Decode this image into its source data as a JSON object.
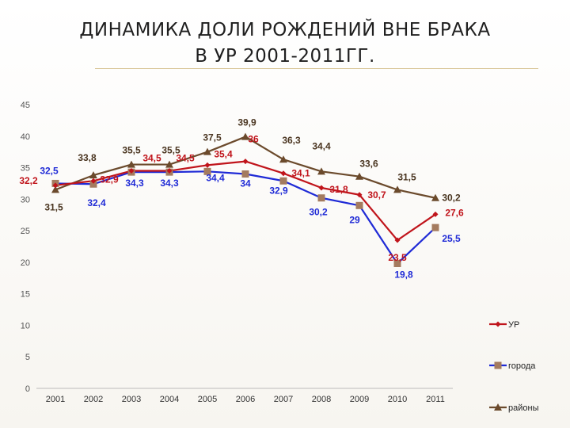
{
  "title_line1": "ДИНАМИКА ДОЛИ РОЖДЕНИЙ ВНЕ БРАКА",
  "title_line2": "В УР 2001-2011ГГ.",
  "chart_data": {
    "type": "line",
    "categories": [
      "2001",
      "2002",
      "2003",
      "2004",
      "2005",
      "2006",
      "2007",
      "2008",
      "2009",
      "2010",
      "2011"
    ],
    "ylim": [
      0,
      45
    ],
    "yticks": [
      0,
      5,
      10,
      15,
      20,
      25,
      30,
      35,
      40,
      45
    ],
    "grid": false,
    "legend_position": "bottom-right",
    "series": [
      {
        "name": "УР",
        "values": [
          32.2,
          32.9,
          34.5,
          34.5,
          35.4,
          36,
          34.1,
          31.8,
          30.7,
          23.5,
          27.6
        ],
        "labels": [
          "32,2",
          "32,9",
          "34,5",
          "34,5",
          "35,4",
          "36",
          "34,1",
          "31,8",
          "30,7",
          "23,5",
          "27,6"
        ],
        "color": "#c0141b",
        "marker": "diamond"
      },
      {
        "name": "города",
        "values": [
          32.5,
          32.4,
          34.3,
          34.3,
          34.4,
          34,
          32.9,
          30.2,
          29,
          19.8,
          25.5
        ],
        "labels": [
          "32,5",
          "32,4",
          "34,3",
          "34,3",
          "34,4",
          "34",
          "32,9",
          "30,2",
          "29",
          "19,8",
          "25,5"
        ],
        "color": "#1f2ad6",
        "marker": "square",
        "marker_color": "#a47b5f"
      },
      {
        "name": "районы",
        "values": [
          31.5,
          33.8,
          35.5,
          35.5,
          37.5,
          39.9,
          36.3,
          34.4,
          33.6,
          31.5,
          30.2
        ],
        "labels": [
          "31,5",
          "33,8",
          "35,5",
          "35,5",
          "37,5",
          "39,9",
          "36,3",
          "34,4",
          "33,6",
          "31,5",
          "30,2"
        ],
        "color": "#6b4a2c",
        "marker": "triangle"
      }
    ]
  }
}
